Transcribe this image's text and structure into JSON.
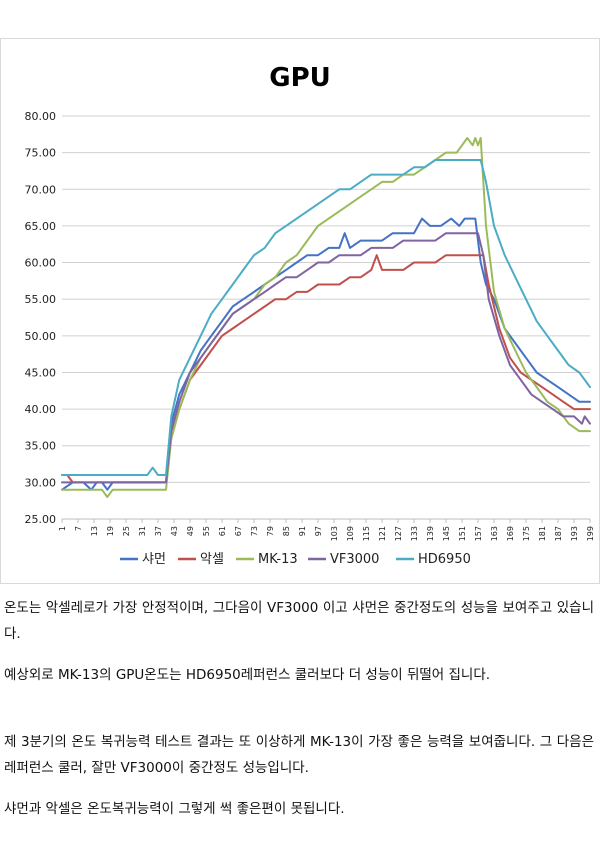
{
  "chart_data": {
    "type": "line",
    "title": "GPU",
    "xlabel": "",
    "ylabel": "",
    "ylim": [
      25,
      80
    ],
    "xlim": [
      1,
      199
    ],
    "y_ticks": [
      "25.00",
      "30.00",
      "35.00",
      "40.00",
      "45.00",
      "50.00",
      "55.00",
      "60.00",
      "65.00",
      "70.00",
      "75.00",
      "80.00"
    ],
    "x_ticks": [
      1,
      7,
      13,
      19,
      25,
      31,
      37,
      43,
      49,
      55,
      61,
      67,
      73,
      79,
      85,
      91,
      97,
      103,
      109,
      115,
      121,
      127,
      133,
      139,
      145,
      151,
      157,
      163,
      169,
      175,
      181,
      187,
      193,
      199
    ],
    "grid": "horizontal",
    "legend": "bottom",
    "series": [
      {
        "name": "샤먼",
        "color": "#4472c4",
        "x": [
          1,
          5,
          9,
          12,
          14,
          16,
          18,
          20,
          22,
          25,
          28,
          31,
          34,
          40,
          42,
          45,
          49,
          53,
          57,
          61,
          65,
          69,
          73,
          77,
          81,
          85,
          89,
          93,
          97,
          101,
          105,
          107,
          109,
          113,
          117,
          121,
          125,
          129,
          133,
          136,
          139,
          143,
          147,
          150,
          152,
          154,
          156,
          158,
          160,
          163,
          167,
          171,
          175,
          179,
          183,
          187,
          191,
          195,
          199
        ],
        "y": [
          29,
          30,
          30,
          29,
          30,
          30,
          29,
          30,
          30,
          30,
          30,
          30,
          30,
          30,
          38,
          42,
          45,
          48,
          50,
          52,
          54,
          55,
          56,
          57,
          58,
          59,
          60,
          61,
          61,
          62,
          62,
          64,
          62,
          63,
          63,
          63,
          64,
          64,
          64,
          66,
          65,
          65,
          66,
          65,
          66,
          66,
          66,
          60,
          57,
          55,
          51,
          49,
          47,
          45,
          44,
          43,
          42,
          41,
          41
        ]
      },
      {
        "name": "악셀",
        "color": "#c0504d",
        "x": [
          1,
          3,
          5,
          9,
          13,
          17,
          21,
          25,
          29,
          33,
          37,
          40,
          42,
          45,
          49,
          53,
          57,
          61,
          65,
          69,
          73,
          77,
          81,
          85,
          89,
          93,
          97,
          101,
          105,
          109,
          113,
          117,
          119,
          121,
          125,
          129,
          133,
          137,
          141,
          145,
          149,
          153,
          157,
          159,
          161,
          165,
          169,
          173,
          177,
          181,
          185,
          189,
          193,
          199
        ],
        "y": [
          31,
          31,
          30,
          30,
          30,
          30,
          30,
          30,
          30,
          30,
          30,
          30,
          36,
          40,
          44,
          46,
          48,
          50,
          51,
          52,
          53,
          54,
          55,
          55,
          56,
          56,
          57,
          57,
          57,
          58,
          58,
          59,
          61,
          59,
          59,
          59,
          60,
          60,
          60,
          61,
          61,
          61,
          61,
          61,
          57,
          51,
          47,
          45,
          44,
          43,
          42,
          41,
          40,
          40
        ]
      },
      {
        "name": "MK-13",
        "color": "#9bbb59",
        "x": [
          1,
          5,
          9,
          13,
          16,
          18,
          20,
          25,
          29,
          33,
          37,
          40,
          42,
          45,
          49,
          53,
          57,
          61,
          65,
          69,
          73,
          77,
          81,
          85,
          89,
          93,
          97,
          101,
          105,
          109,
          113,
          117,
          121,
          125,
          129,
          133,
          137,
          141,
          145,
          149,
          151,
          153,
          155,
          156,
          157,
          158,
          160,
          163,
          167,
          171,
          175,
          179,
          183,
          187,
          191,
          195,
          199
        ],
        "y": [
          29,
          29,
          29,
          29,
          29,
          28,
          29,
          29,
          29,
          29,
          29,
          29,
          36,
          40,
          44,
          47,
          49,
          51,
          53,
          54,
          55,
          57,
          58,
          60,
          61,
          63,
          65,
          66,
          67,
          68,
          69,
          70,
          71,
          71,
          72,
          72,
          73,
          74,
          75,
          75,
          76,
          77,
          76,
          77,
          76,
          77,
          65,
          56,
          51,
          48,
          45,
          43,
          41,
          40,
          38,
          37,
          37
        ]
      },
      {
        "name": "VF3000",
        "color": "#8064a2",
        "x": [
          1,
          5,
          9,
          13,
          17,
          21,
          25,
          29,
          33,
          37,
          40,
          42,
          45,
          49,
          53,
          57,
          61,
          65,
          69,
          73,
          77,
          81,
          85,
          89,
          93,
          97,
          101,
          105,
          109,
          113,
          117,
          121,
          125,
          129,
          133,
          137,
          141,
          145,
          149,
          153,
          157,
          159,
          161,
          165,
          169,
          173,
          177,
          181,
          185,
          189,
          193,
          196,
          197,
          199
        ],
        "y": [
          30,
          30,
          30,
          30,
          30,
          30,
          30,
          30,
          30,
          30,
          30,
          37,
          41,
          45,
          47,
          49,
          51,
          53,
          54,
          55,
          56,
          57,
          58,
          58,
          59,
          60,
          60,
          61,
          61,
          61,
          62,
          62,
          62,
          63,
          63,
          63,
          63,
          64,
          64,
          64,
          64,
          61,
          55,
          50,
          46,
          44,
          42,
          41,
          40,
          39,
          39,
          38,
          39,
          38
        ]
      },
      {
        "name": "HD6950",
        "color": "#4bacc6",
        "x": [
          1,
          5,
          9,
          13,
          17,
          21,
          25,
          29,
          33,
          35,
          37,
          40,
          42,
          45,
          49,
          53,
          57,
          61,
          63,
          65,
          67,
          69,
          73,
          77,
          81,
          85,
          89,
          93,
          97,
          101,
          105,
          109,
          113,
          117,
          121,
          125,
          129,
          133,
          137,
          141,
          145,
          149,
          153,
          157,
          158,
          160,
          163,
          167,
          171,
          175,
          179,
          183,
          187,
          191,
          195,
          197,
          199
        ],
        "y": [
          31,
          31,
          31,
          31,
          31,
          31,
          31,
          31,
          31,
          32,
          31,
          31,
          39,
          44,
          47,
          50,
          53,
          55,
          56,
          57,
          58,
          59,
          61,
          62,
          64,
          65,
          66,
          67,
          68,
          69,
          70,
          70,
          71,
          72,
          72,
          72,
          72,
          73,
          73,
          74,
          74,
          74,
          74,
          74,
          74,
          71,
          65,
          61,
          58,
          55,
          52,
          50,
          48,
          46,
          45,
          44,
          43
        ]
      }
    ]
  },
  "paragraphs": [
    "온도는 악셀레로가 가장 안정적이며, 그다음이 VF3000 이고 샤먼은 중간정도의 성능을 보여주고 있습니다.",
    "예상외로 MK-13의 GPU온도는 HD6950레퍼런스 쿨러보다 더 성능이 뒤떨어 집니다.",
    "제 3분기의 온도 복귀능력 테스트 결과는 또 이상하게 MK-13이 가장 좋은 능력을 보여줍니다. 그 다음은 레퍼런스 쿨러, 잘만 VF3000이 중간정도 성능입니다.",
    "샤먼과 악셀은 온도복귀능력이 그렇게 썩 좋은편이 못됩니다."
  ]
}
